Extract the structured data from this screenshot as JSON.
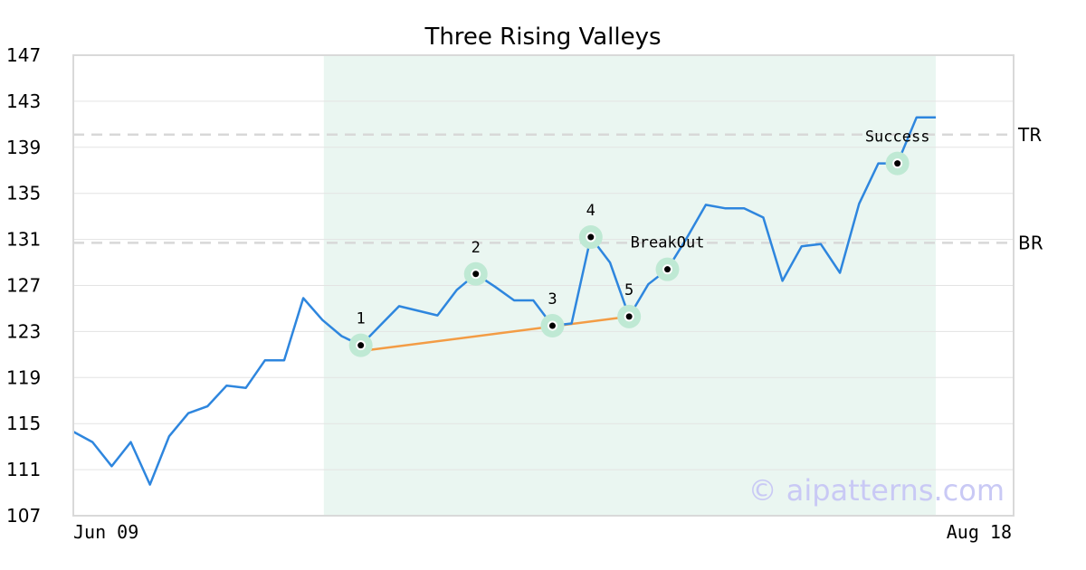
{
  "chart_data": {
    "type": "line",
    "title": "Three Rising Valleys",
    "xlabel": "",
    "ylabel": "",
    "ylim": [
      107,
      147
    ],
    "yticks": [
      "107",
      "111",
      "115",
      "119",
      "123",
      "127",
      "131",
      "135",
      "139",
      "143",
      "147"
    ],
    "xtick_labels": [
      "Jun 09",
      "Aug 18"
    ],
    "x_range_dates": [
      "2025-06-09",
      "2025-08-18"
    ],
    "grid": "horizontal",
    "colors": {
      "line": "#2e86de",
      "trendline": "#f39c45",
      "pattern_region": "#eaf6f1",
      "marker_halo": "#bfe9d4",
      "reference_line": "#d8d8d8",
      "watermark": "#c9c9f5"
    },
    "series": [
      {
        "values": [
          114.3,
          113.4,
          111.3,
          113.4,
          109.7,
          113.9,
          115.9,
          116.5,
          118.3,
          118.1,
          120.5,
          120.5,
          125.9,
          124.0,
          122.6,
          121.8,
          123.5,
          125.2,
          124.8,
          124.4,
          126.6,
          128.0,
          126.9,
          125.7,
          125.7,
          123.5,
          123.7,
          131.2,
          129.0,
          124.3,
          127.1,
          128.4,
          131.1,
          134.0,
          133.7,
          133.7,
          132.9,
          127.4,
          130.4,
          130.6,
          128.1,
          134.1,
          137.6,
          137.6,
          141.6,
          141.6
        ]
      }
    ],
    "pattern_region": {
      "start_index": 13,
      "end_index": 45
    },
    "trendline": {
      "from_index": 15,
      "to_index": 29,
      "from_value": 121.3,
      "to_value": 124.3
    },
    "reference_lines": [
      {
        "label": "TR",
        "value": 140.1
      },
      {
        "label": "BR",
        "value": 130.7
      }
    ],
    "markers": [
      {
        "label": "1",
        "index": 15,
        "value": 121.8,
        "label_pos": "above"
      },
      {
        "label": "2",
        "index": 21,
        "value": 128.0,
        "label_pos": "above"
      },
      {
        "label": "3",
        "index": 25,
        "value": 123.5,
        "label_pos": "above"
      },
      {
        "label": "4",
        "index": 27,
        "value": 131.2,
        "label_pos": "above"
      },
      {
        "label": "5",
        "index": 29,
        "value": 124.3,
        "label_pos": "above"
      },
      {
        "label": "BreakOut",
        "index": 31,
        "value": 128.4,
        "label_pos": "above"
      },
      {
        "label": "Success",
        "index": 43,
        "value": 137.6,
        "label_pos": "above"
      }
    ],
    "watermark": "© aipatterns.com"
  }
}
